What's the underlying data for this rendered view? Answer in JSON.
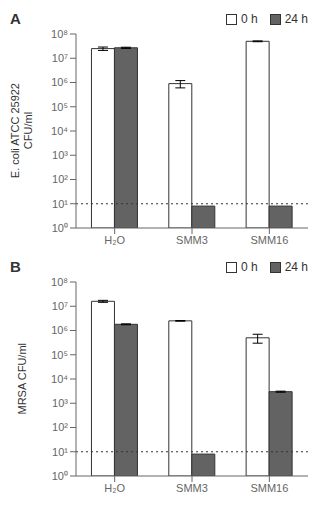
{
  "chart_data": [
    {
      "type": "bar",
      "title": "A",
      "y_label": "E. coli ATCC 25922\nCFU/ml",
      "categories": [
        "H₂O",
        "SMM3",
        "SMM16"
      ],
      "series": [
        {
          "name": "0 h",
          "color": "#ffffff",
          "values": [
            25000000,
            900000,
            50000000
          ],
          "errors": [
            4000000,
            300000,
            2000000
          ]
        },
        {
          "name": "24 h",
          "color": "#636363",
          "values": [
            27000000,
            8,
            8
          ],
          "errors": [
            1500000,
            0,
            0
          ]
        }
      ],
      "log": "y",
      "ylim": [
        1,
        100000000
      ],
      "yticks": [
        {
          "value": 1,
          "label": "10⁰"
        },
        {
          "value": 10,
          "label": "10¹"
        },
        {
          "value": 100,
          "label": "10²"
        },
        {
          "value": 1000,
          "label": "10³"
        },
        {
          "value": 10000,
          "label": "10⁴"
        },
        {
          "value": 100000,
          "label": "10⁵"
        },
        {
          "value": 1000000,
          "label": "10⁶"
        },
        {
          "value": 10000000,
          "label": "10⁷"
        },
        {
          "value": 100000000,
          "label": "10⁸"
        }
      ],
      "reference_line": 10,
      "legend": "top"
    },
    {
      "type": "bar",
      "title": "B",
      "y_label": "MRSA CFU/ml",
      "categories": [
        "H₂O",
        "SMM3",
        "SMM16"
      ],
      "series": [
        {
          "name": "0 h",
          "color": "#ffffff",
          "values": [
            16000000,
            2500000,
            500000
          ],
          "errors": [
            1500000,
            80000,
            200000
          ]
        },
        {
          "name": "24 h",
          "color": "#636363",
          "values": [
            1800000,
            8,
            3000
          ],
          "errors": [
            80000,
            0,
            150
          ]
        }
      ],
      "log": "y",
      "ylim": [
        1,
        100000000
      ],
      "yticks": [
        {
          "value": 1,
          "label": "10⁰"
        },
        {
          "value": 10,
          "label": "10¹"
        },
        {
          "value": 100,
          "label": "10²"
        },
        {
          "value": 1000,
          "label": "10³"
        },
        {
          "value": 10000,
          "label": "10⁴"
        },
        {
          "value": 100000,
          "label": "10⁵"
        },
        {
          "value": 1000000,
          "label": "10⁶"
        },
        {
          "value": 10000000,
          "label": "10⁷"
        },
        {
          "value": 100000000,
          "label": "10⁸"
        }
      ],
      "reference_line": 10,
      "legend": "top"
    }
  ]
}
